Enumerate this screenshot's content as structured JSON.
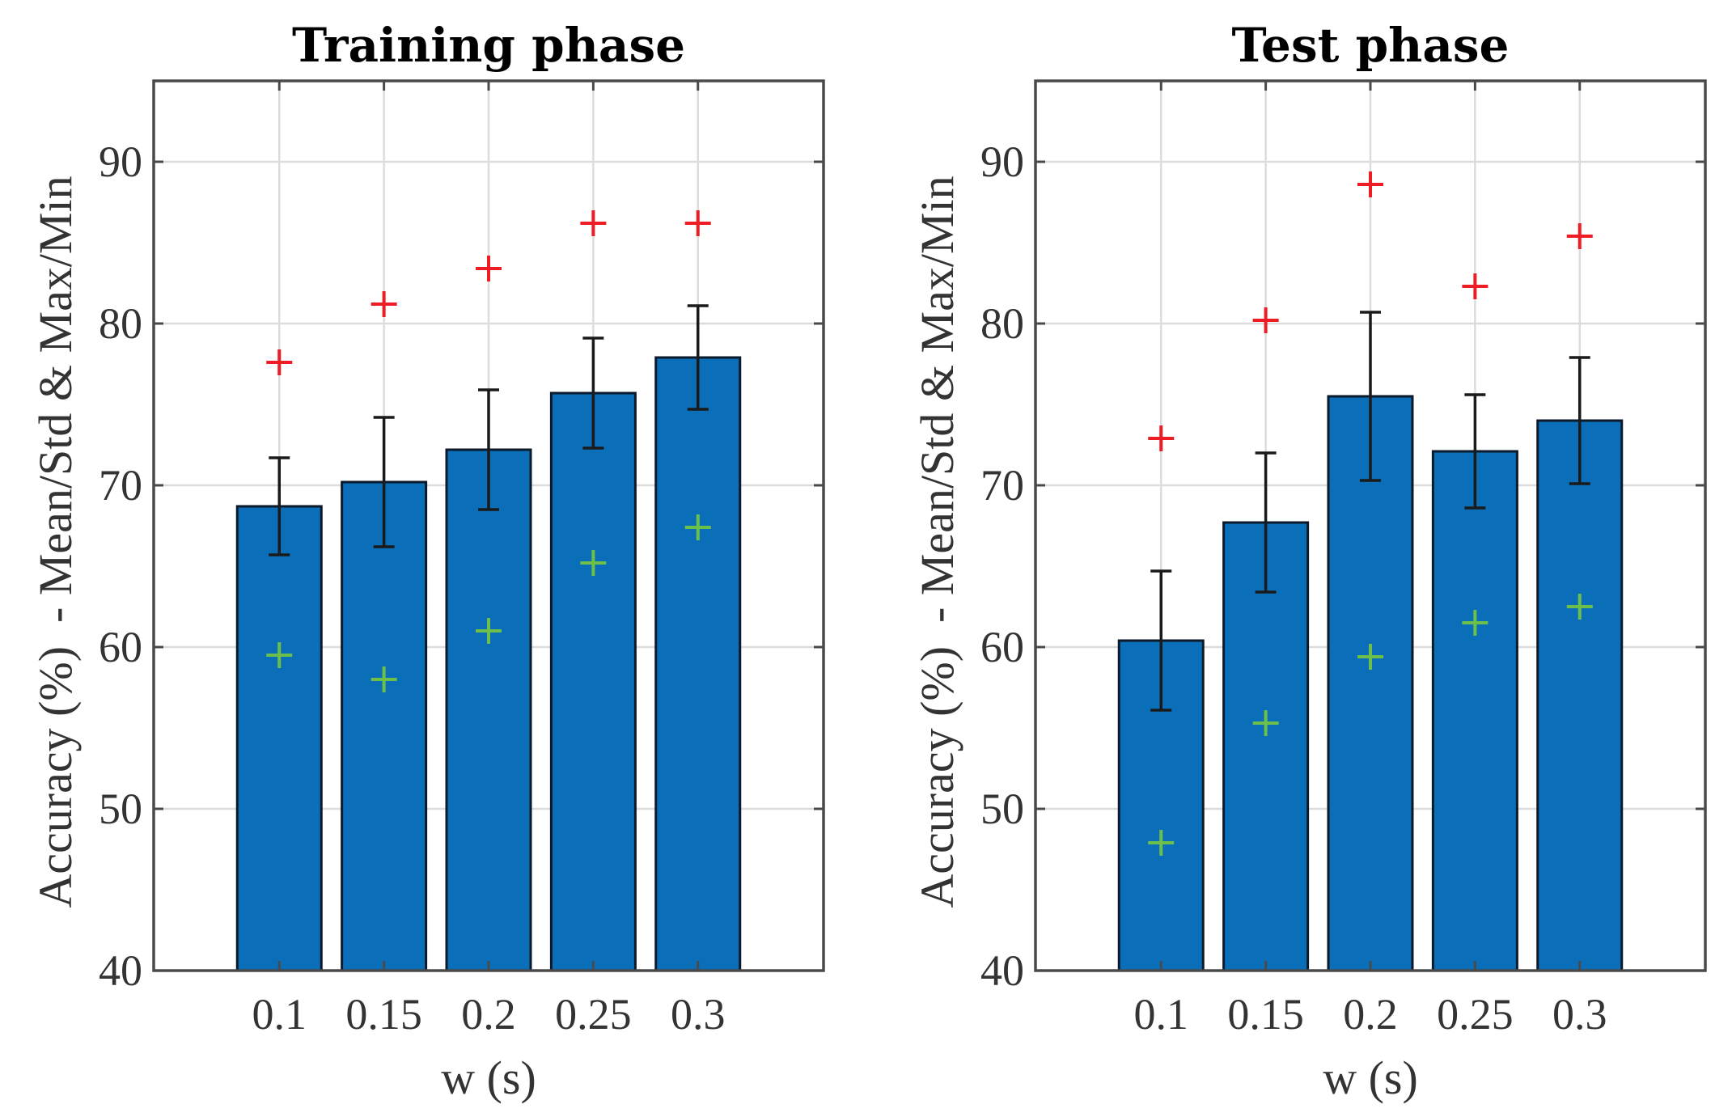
{
  "chart_data": [
    {
      "type": "bar",
      "title": "Training phase",
      "xlabel": "w (s)",
      "ylabel": "Accuracy (%)  - Mean/Std & Max/Min",
      "categories": [
        "0.1",
        "0.15",
        "0.2",
        "0.25",
        "0.3"
      ],
      "ylim": [
        40,
        95
      ],
      "yticks": [
        "40",
        "50",
        "60",
        "70",
        "80",
        "90"
      ],
      "grid": true,
      "series": [
        {
          "name": "Mean",
          "values": [
            68.7,
            70.2,
            72.2,
            75.7,
            77.9
          ]
        },
        {
          "name": "Std",
          "values": [
            3.0,
            4.0,
            3.7,
            3.4,
            3.2
          ]
        },
        {
          "name": "Max",
          "values": [
            77.6,
            81.2,
            83.4,
            86.2,
            86.2
          ]
        },
        {
          "name": "Min",
          "values": [
            59.5,
            58.0,
            61.0,
            65.2,
            67.4
          ]
        }
      ]
    },
    {
      "type": "bar",
      "title": "Test phase",
      "xlabel": "w (s)",
      "ylabel": "Accuracy (%)  - Mean/Std & Max/Min",
      "categories": [
        "0.1",
        "0.15",
        "0.2",
        "0.25",
        "0.3"
      ],
      "ylim": [
        40,
        95
      ],
      "yticks": [
        "40",
        "50",
        "60",
        "70",
        "80",
        "90"
      ],
      "grid": true,
      "series": [
        {
          "name": "Mean",
          "values": [
            60.4,
            67.7,
            75.5,
            72.1,
            74.0
          ]
        },
        {
          "name": "Std",
          "values": [
            4.3,
            4.3,
            5.2,
            3.5,
            3.9
          ]
        },
        {
          "name": "Max",
          "values": [
            72.9,
            80.2,
            88.6,
            82.3,
            85.4
          ]
        },
        {
          "name": "Min",
          "values": [
            47.9,
            55.3,
            59.4,
            61.5,
            62.5
          ]
        }
      ]
    }
  ],
  "colors": {
    "bar": "#0a6eb8",
    "bar_edge": "#0b1a2a",
    "max_marker": "#ee1c24",
    "min_marker": "#6cc04a",
    "errorbar": "#1a1a1a",
    "axis": "#4a4a4a",
    "grid": "#dcdcdc"
  }
}
